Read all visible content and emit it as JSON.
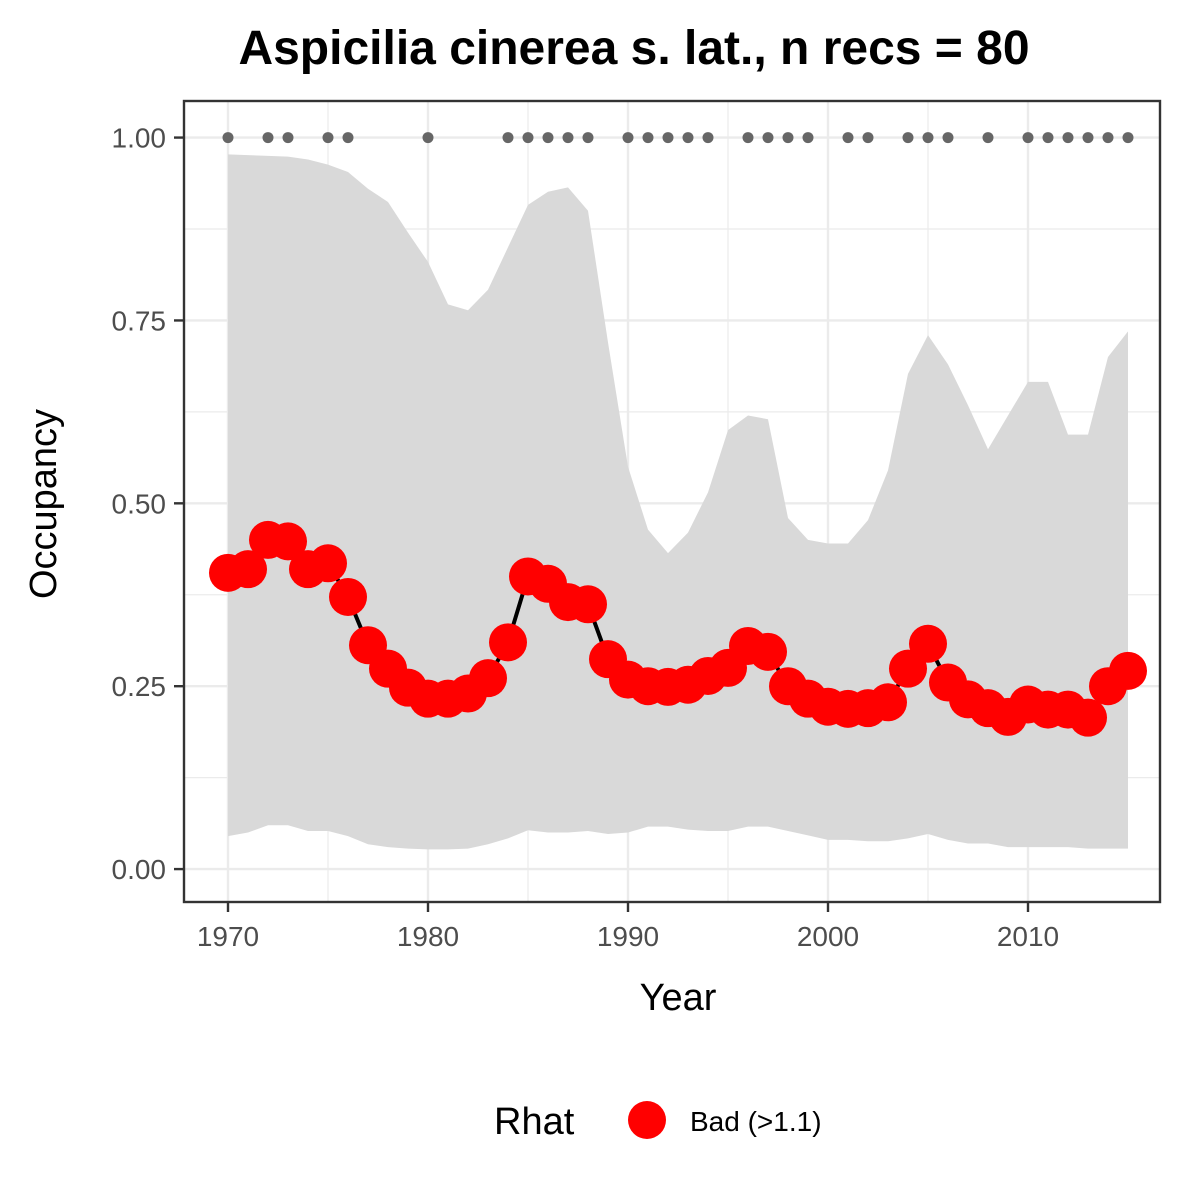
{
  "chart_data": {
    "type": "line",
    "title": "Aspicilia cinerea s. lat., n recs = 80",
    "xlabel": "Year",
    "ylabel": "Occupancy",
    "xlim": [
      1967.8,
      2016.6
    ],
    "ylim": [
      -0.045,
      1.05
    ],
    "x_ticks": [
      1970,
      1980,
      1990,
      2000,
      2010
    ],
    "x_tick_labels": [
      "1970",
      "1980",
      "1990",
      "2000",
      "2010"
    ],
    "y_ticks": [
      0,
      0.25,
      0.5,
      0.75,
      1.0
    ],
    "y_tick_labels": [
      "0.00",
      "0.25",
      "0.50",
      "0.75",
      "1.00"
    ],
    "grid": true,
    "legend": {
      "title": "Rhat",
      "position": "bottom",
      "entries": [
        {
          "label": "Bad (>1.1)",
          "color": "#ff0000"
        }
      ]
    },
    "colors": {
      "points": "#ff0000",
      "line": "#000000",
      "ribbon": "#d9d9d9",
      "records": "#666666",
      "panel_border": "#333333",
      "grid": "#ebebeb"
    },
    "series": [
      {
        "role": "occupancy",
        "x": [
          1970,
          1971,
          1972,
          1973,
          1974,
          1975,
          1976,
          1977,
          1978,
          1979,
          1980,
          1981,
          1982,
          1983,
          1984,
          1985,
          1986,
          1987,
          1988,
          1989,
          1990,
          1991,
          1992,
          1993,
          1994,
          1995,
          1996,
          1997,
          1998,
          1999,
          2000,
          2001,
          2002,
          2003,
          2004,
          2005,
          2006,
          2007,
          2008,
          2009,
          2010,
          2011,
          2012,
          2013,
          2014,
          2015
        ],
        "y": [
          0.405,
          0.41,
          0.45,
          0.448,
          0.41,
          0.418,
          0.372,
          0.306,
          0.274,
          0.248,
          0.233,
          0.233,
          0.24,
          0.261,
          0.31,
          0.4,
          0.39,
          0.365,
          0.362,
          0.287,
          0.259,
          0.25,
          0.249,
          0.252,
          0.264,
          0.275,
          0.305,
          0.297,
          0.25,
          0.233,
          0.222,
          0.219,
          0.22,
          0.228,
          0.274,
          0.308,
          0.255,
          0.232,
          0.22,
          0.208,
          0.225,
          0.218,
          0.218,
          0.207,
          0.25,
          0.271
        ]
      }
    ],
    "ribbon": {
      "x": [
        1970,
        1971,
        1972,
        1973,
        1974,
        1975,
        1976,
        1977,
        1978,
        1979,
        1980,
        1981,
        1982,
        1983,
        1984,
        1985,
        1986,
        1987,
        1988,
        1989,
        1990,
        1991,
        1992,
        1993,
        1994,
        1995,
        1996,
        1997,
        1998,
        1999,
        2000,
        2001,
        2002,
        2003,
        2004,
        2005,
        2006,
        2007,
        2008,
        2009,
        2010,
        2011,
        2012,
        2013,
        2014,
        2015
      ],
      "lower": [
        0.045,
        0.05,
        0.06,
        0.06,
        0.052,
        0.052,
        0.045,
        0.034,
        0.03,
        0.028,
        0.027,
        0.027,
        0.028,
        0.034,
        0.042,
        0.053,
        0.05,
        0.05,
        0.052,
        0.048,
        0.05,
        0.058,
        0.058,
        0.054,
        0.052,
        0.052,
        0.058,
        0.058,
        0.052,
        0.046,
        0.04,
        0.04,
        0.038,
        0.038,
        0.042,
        0.048,
        0.04,
        0.035,
        0.035,
        0.03,
        0.03,
        0.03,
        0.03,
        0.028,
        0.028,
        0.028
      ],
      "upper": [
        0.977,
        0.976,
        0.975,
        0.974,
        0.97,
        0.963,
        0.953,
        0.93,
        0.912,
        0.87,
        0.83,
        0.772,
        0.764,
        0.792,
        0.85,
        0.908,
        0.926,
        0.932,
        0.9,
        0.72,
        0.55,
        0.464,
        0.432,
        0.46,
        0.515,
        0.6,
        0.62,
        0.615,
        0.48,
        0.45,
        0.445,
        0.445,
        0.477,
        0.545,
        0.677,
        0.73,
        0.69,
        0.634,
        0.574,
        0.62,
        0.666,
        0.666,
        0.594,
        0.594,
        0.7,
        0.735
      ]
    },
    "records": {
      "y": 1.0,
      "x": [
        1970,
        1972,
        1973,
        1975,
        1976,
        1980,
        1984,
        1985,
        1986,
        1987,
        1988,
        1990,
        1991,
        1992,
        1993,
        1994,
        1996,
        1997,
        1998,
        1999,
        2001,
        2002,
        2004,
        2005,
        2006,
        2008,
        2010,
        2011,
        2012,
        2013,
        2014,
        2015
      ]
    }
  }
}
